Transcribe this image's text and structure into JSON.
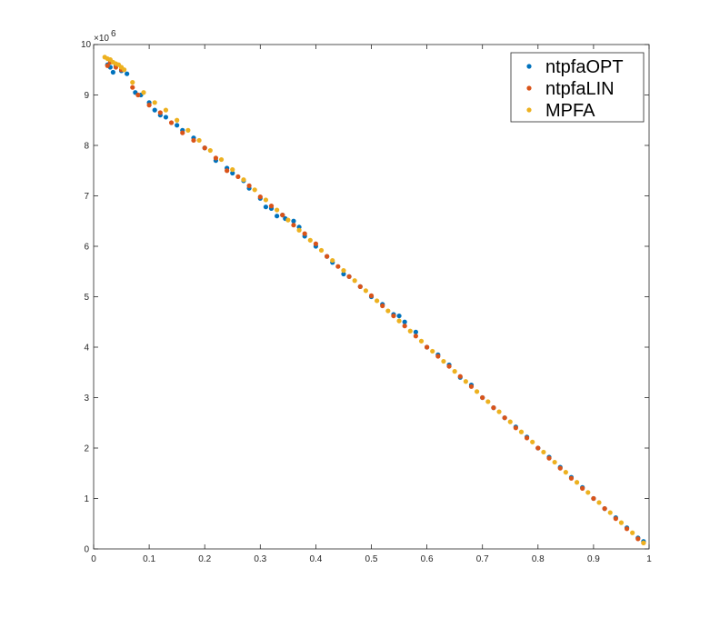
{
  "chart_data": {
    "type": "scatter",
    "title": "",
    "xlabel": "",
    "ylabel": "",
    "xlim": [
      0,
      1
    ],
    "ylim": [
      0,
      10000000
    ],
    "grid": false,
    "legend_placement": "top-right",
    "x_ticks": [
      0,
      0.1,
      0.2,
      0.3,
      0.4,
      0.5,
      0.6,
      0.7,
      0.8,
      0.9,
      1
    ],
    "x_tick_labels": [
      "0",
      "0.1",
      "0.2",
      "0.3",
      "0.4",
      "0.5",
      "0.6",
      "0.7",
      "0.8",
      "0.9",
      "1"
    ],
    "y_ticks": [
      0,
      1000000,
      2000000,
      3000000,
      4000000,
      5000000,
      6000000,
      7000000,
      8000000,
      9000000,
      10000000
    ],
    "y_tick_labels": [
      "0",
      "1",
      "2",
      "3",
      "4",
      "5",
      "6",
      "7",
      "8",
      "9",
      "10"
    ],
    "y_exponent_label": "×10",
    "y_exponent_power": "6",
    "series": [
      {
        "name": "ntpfaOPT",
        "color": "#0072bd",
        "x": [
          0.025,
          0.03,
          0.035,
          0.04,
          0.05,
          0.06,
          0.075,
          0.085,
          0.1,
          0.11,
          0.12,
          0.13,
          0.15,
          0.16,
          0.18,
          0.2,
          0.22,
          0.24,
          0.25,
          0.27,
          0.28,
          0.3,
          0.31,
          0.32,
          0.33,
          0.34,
          0.345,
          0.36,
          0.37,
          0.38,
          0.4,
          0.42,
          0.43,
          0.45,
          0.46,
          0.48,
          0.5,
          0.52,
          0.54,
          0.55,
          0.56,
          0.58,
          0.6,
          0.62,
          0.64,
          0.66,
          0.68,
          0.7,
          0.72,
          0.74,
          0.76,
          0.78,
          0.8,
          0.82,
          0.84,
          0.86,
          0.88,
          0.9,
          0.92,
          0.94,
          0.96,
          0.98,
          0.99
        ],
        "y": [
          9600000,
          9550000,
          9450000,
          9580000,
          9480000,
          9420000,
          9050000,
          9000000,
          8850000,
          8700000,
          8600000,
          8560000,
          8400000,
          8300000,
          8150000,
          7950000,
          7700000,
          7550000,
          7450000,
          7300000,
          7150000,
          6950000,
          6780000,
          6750000,
          6600000,
          6620000,
          6550000,
          6500000,
          6380000,
          6200000,
          6000000,
          5800000,
          5680000,
          5450000,
          5400000,
          5200000,
          5000000,
          4850000,
          4650000,
          4620000,
          4500000,
          4300000,
          4000000,
          3850000,
          3650000,
          3400000,
          3250000,
          3000000,
          2800000,
          2600000,
          2420000,
          2220000,
          2000000,
          1820000,
          1620000,
          1420000,
          1220000,
          1000000,
          800000,
          620000,
          420000,
          220000,
          150000
        ]
      },
      {
        "name": "ntpfaLIN",
        "color": "#d95319",
        "x": [
          0.025,
          0.03,
          0.04,
          0.05,
          0.07,
          0.08,
          0.1,
          0.12,
          0.14,
          0.16,
          0.18,
          0.2,
          0.22,
          0.24,
          0.26,
          0.28,
          0.3,
          0.32,
          0.34,
          0.36,
          0.38,
          0.4,
          0.42,
          0.44,
          0.46,
          0.48,
          0.5,
          0.52,
          0.54,
          0.56,
          0.58,
          0.6,
          0.62,
          0.64,
          0.66,
          0.68,
          0.7,
          0.72,
          0.74,
          0.76,
          0.78,
          0.8,
          0.82,
          0.84,
          0.86,
          0.88,
          0.9,
          0.92,
          0.94,
          0.96,
          0.98,
          0.99
        ],
        "y": [
          9580000,
          9650000,
          9550000,
          9500000,
          9150000,
          9000000,
          8800000,
          8650000,
          8450000,
          8250000,
          8100000,
          7950000,
          7750000,
          7500000,
          7380000,
          7200000,
          6980000,
          6800000,
          6620000,
          6420000,
          6250000,
          6050000,
          5800000,
          5600000,
          5400000,
          5200000,
          5020000,
          4820000,
          4620000,
          4420000,
          4220000,
          4000000,
          3820000,
          3620000,
          3420000,
          3220000,
          3000000,
          2800000,
          2600000,
          2400000,
          2200000,
          2000000,
          1800000,
          1600000,
          1400000,
          1200000,
          1000000,
          800000,
          600000,
          400000,
          200000,
          120000
        ]
      },
      {
        "name": "MPFA",
        "color": "#edb120",
        "x": [
          0.02,
          0.025,
          0.03,
          0.035,
          0.04,
          0.045,
          0.05,
          0.055,
          0.07,
          0.09,
          0.11,
          0.13,
          0.15,
          0.17,
          0.19,
          0.21,
          0.23,
          0.25,
          0.27,
          0.29,
          0.31,
          0.33,
          0.35,
          0.37,
          0.39,
          0.41,
          0.43,
          0.45,
          0.47,
          0.49,
          0.51,
          0.53,
          0.55,
          0.57,
          0.59,
          0.61,
          0.63,
          0.65,
          0.67,
          0.69,
          0.71,
          0.73,
          0.75,
          0.77,
          0.79,
          0.81,
          0.83,
          0.85,
          0.87,
          0.89,
          0.91,
          0.93,
          0.95,
          0.97,
          0.99
        ],
        "y": [
          9750000,
          9720000,
          9700000,
          9650000,
          9620000,
          9600000,
          9550000,
          9500000,
          9250000,
          9050000,
          8850000,
          8700000,
          8500000,
          8300000,
          8100000,
          7900000,
          7720000,
          7520000,
          7320000,
          7120000,
          6920000,
          6720000,
          6520000,
          6320000,
          6120000,
          5920000,
          5720000,
          5520000,
          5320000,
          5120000,
          4920000,
          4720000,
          4520000,
          4320000,
          4120000,
          3920000,
          3720000,
          3520000,
          3320000,
          3120000,
          2920000,
          2720000,
          2520000,
          2320000,
          2120000,
          1920000,
          1720000,
          1520000,
          1320000,
          1120000,
          920000,
          720000,
          520000,
          320000,
          120000
        ]
      }
    ]
  }
}
